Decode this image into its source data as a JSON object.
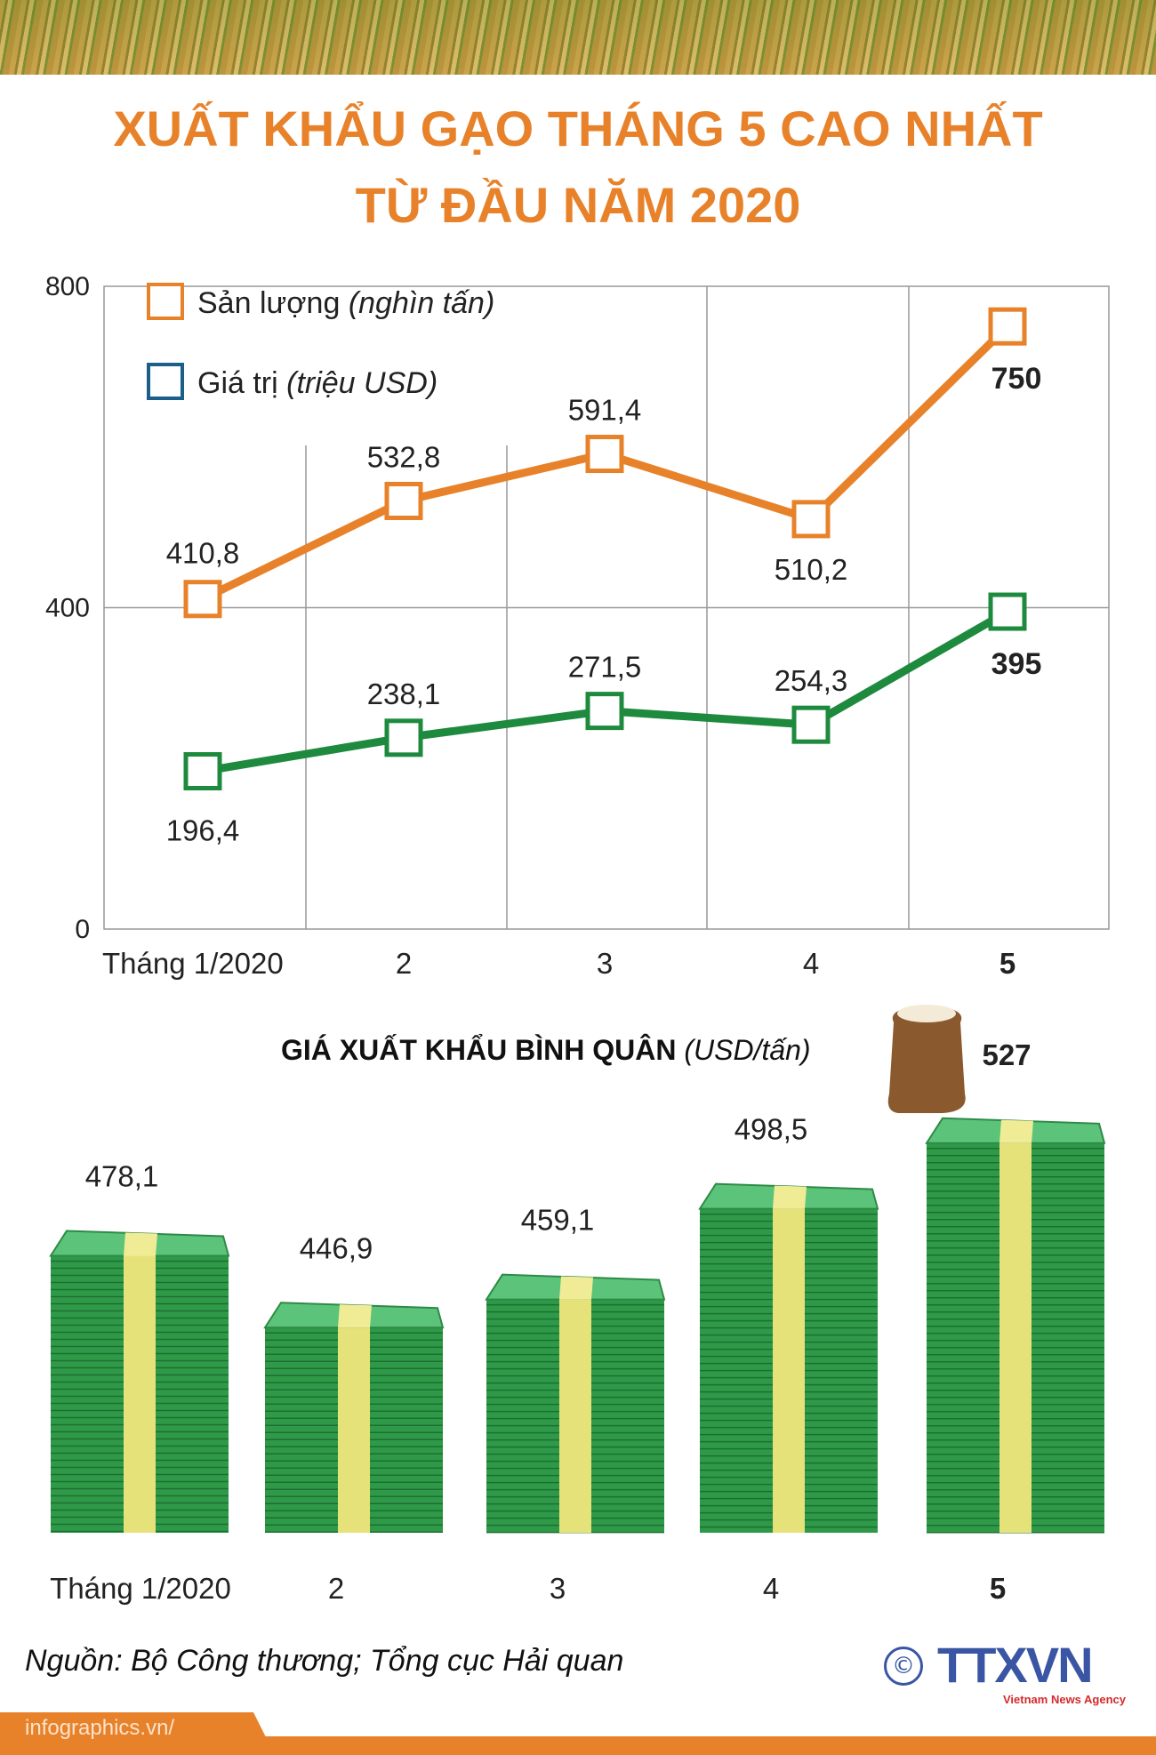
{
  "title": {
    "line1": "XUẤT KHẨU GẠO THÁNG 5 CAO NHẤT",
    "line2": "TỪ ĐẦU NĂM 2020"
  },
  "chart_data": [
    {
      "type": "line",
      "categories": [
        "Tháng 1/2020",
        "2",
        "3",
        "4",
        "5"
      ],
      "ylim": [
        0,
        800
      ],
      "yticks": [
        "0",
        "400",
        "800"
      ],
      "grid": true,
      "legend": "top-left",
      "series": [
        {
          "name": "Sản lượng",
          "unit": "(nghìn tấn)",
          "color": "#e8822a",
          "values": [
            410.8,
            532.8,
            591.4,
            510.2,
            750
          ],
          "labels": [
            "410,8",
            "532,8",
            "591,4",
            "510,2",
            "750"
          ]
        },
        {
          "name": "Giá trị",
          "unit": "(triệu USD)",
          "color": "#1e8a3e",
          "legend_color": "#1a5f8a",
          "values": [
            196.4,
            238.1,
            271.5,
            254.3,
            395
          ],
          "labels": [
            "196,4",
            "238,1",
            "271,5",
            "254,3",
            "395"
          ]
        }
      ]
    },
    {
      "type": "bar",
      "title": "GIÁ XUẤT KHẨU BÌNH QUÂN",
      "title_unit": "(USD/tấn)",
      "categories": [
        "Tháng 1/2020",
        "2",
        "3",
        "4",
        "5"
      ],
      "values": [
        478.1,
        446.9,
        459.1,
        498.5,
        527
      ],
      "labels": [
        "478,1",
        "446,9",
        "459,1",
        "498,5",
        "527"
      ],
      "bar_style": "money-stack",
      "colors": {
        "money": "#2e9a48",
        "band": "#e6e27a"
      }
    }
  ],
  "source": "Nguồn: Bộ Công thương; Tổng cục Hải quan",
  "logo": {
    "copyright": "©",
    "name": "TTXVN",
    "tagline": "Vietnam News Agency"
  },
  "footer": "infographics.vn/"
}
